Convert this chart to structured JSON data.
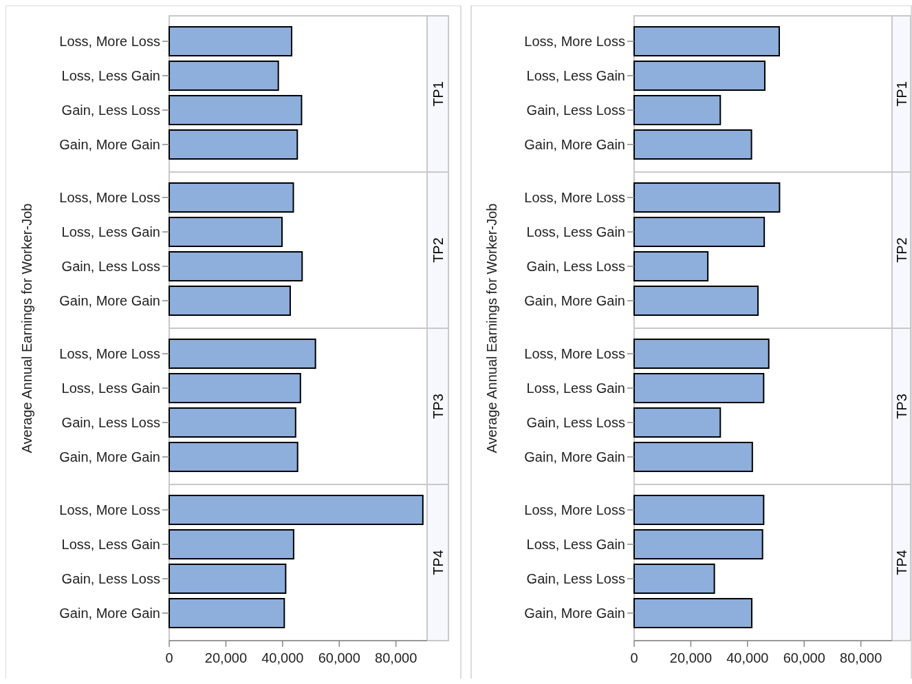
{
  "chart_data": [
    {
      "type": "bar",
      "orientation": "horizontal",
      "title": "TP1",
      "ylabel": "Average Annual Earnings for Worker-Job",
      "categories": [
        "Loss, More Loss",
        "Loss, Less Gain",
        "Gain, Less Loss",
        "Gain, More Gain"
      ],
      "values": [
        43200,
        38500,
        46700,
        45200
      ],
      "color": "#8eaedb",
      "xlim": [
        0,
        91000
      ],
      "tick_labels": "y"
    },
    {
      "type": "bar",
      "orientation": "horizontal",
      "title": "TP2",
      "categories": [
        "Loss, More Loss",
        "Loss, Less Gain",
        "Gain, Less Loss",
        "Gain, More Gain"
      ],
      "values": [
        43800,
        39800,
        46900,
        42700
      ],
      "color": "#8eaedb",
      "xlim": [
        0,
        91000
      ],
      "tick_labels": "y"
    },
    {
      "type": "bar",
      "orientation": "horizontal",
      "title": "TP3",
      "categories": [
        "Loss, More Loss",
        "Loss, Less Gain",
        "Gain, Less Loss",
        "Gain, More Gain"
      ],
      "values": [
        51600,
        46300,
        44600,
        45300
      ],
      "color": "#8eaedb",
      "xlim": [
        0,
        91000
      ],
      "tick_labels": "y"
    },
    {
      "type": "bar",
      "orientation": "horizontal",
      "title": "TP4",
      "categories": [
        "Loss, More Loss",
        "Loss, Less Gain",
        "Gain, Less Loss",
        "Gain, More Gain"
      ],
      "values": [
        89500,
        43900,
        41100,
        40600
      ],
      "color": "#8eaedb",
      "xlim": [
        0,
        91000
      ],
      "xticks": [
        0,
        {
          "value": 20000,
          "label": "20,000"
        },
        {
          "value": 40000,
          "label": "40,000"
        },
        {
          "value": 60000,
          "label": "60,000"
        },
        {
          "value": 80000,
          "label": "80,000"
        }
      ]
    },
    {
      "type": "bar",
      "orientation": "horizontal",
      "title": "TP1",
      "ylabel": "Average Annual Earnings for Worker-Job",
      "categories": [
        "Loss, More Loss",
        "Loss, Less Gain",
        "Gain, Less Loss",
        "Gain, More Gain"
      ],
      "values": [
        51200,
        46100,
        30400,
        41400
      ],
      "color": "#8eaedb",
      "xlim": [
        0,
        91000
      ],
      "tick_labels": "y"
    },
    {
      "type": "bar",
      "orientation": "horizontal",
      "title": "TP2",
      "categories": [
        "Loss, More Loss",
        "Loss, Less Gain",
        "Gain, Less Loss",
        "Gain, More Gain"
      ],
      "values": [
        51300,
        45900,
        26000,
        43700
      ],
      "color": "#8eaedb",
      "xlim": [
        0,
        91000
      ],
      "tick_labels": "y"
    },
    {
      "type": "bar",
      "orientation": "horizontal",
      "title": "TP3",
      "categories": [
        "Loss, More Loss",
        "Loss, Less Gain",
        "Gain, Less Loss",
        "Gain, More Gain"
      ],
      "values": [
        47500,
        45700,
        30400,
        41700
      ],
      "color": "#8eaedb",
      "xlim": [
        0,
        91000
      ],
      "tick_labels": "y"
    },
    {
      "type": "bar",
      "orientation": "horizontal",
      "title": "TP4",
      "categories": [
        "Loss, More Loss",
        "Loss, Less Gain",
        "Gain, Less Loss",
        "Gain, More Gain"
      ],
      "values": [
        45700,
        45300,
        28300,
        41500
      ],
      "color": "#8eaedb",
      "xlim": [
        0,
        91000
      ],
      "xticks": [
        0,
        {
          "value": 20000,
          "label": "20,000"
        },
        {
          "value": 40000,
          "label": "40,000"
        },
        {
          "value": 60000,
          "label": "60,000"
        },
        {
          "value": 80000,
          "label": "80,000"
        }
      ]
    }
  ]
}
